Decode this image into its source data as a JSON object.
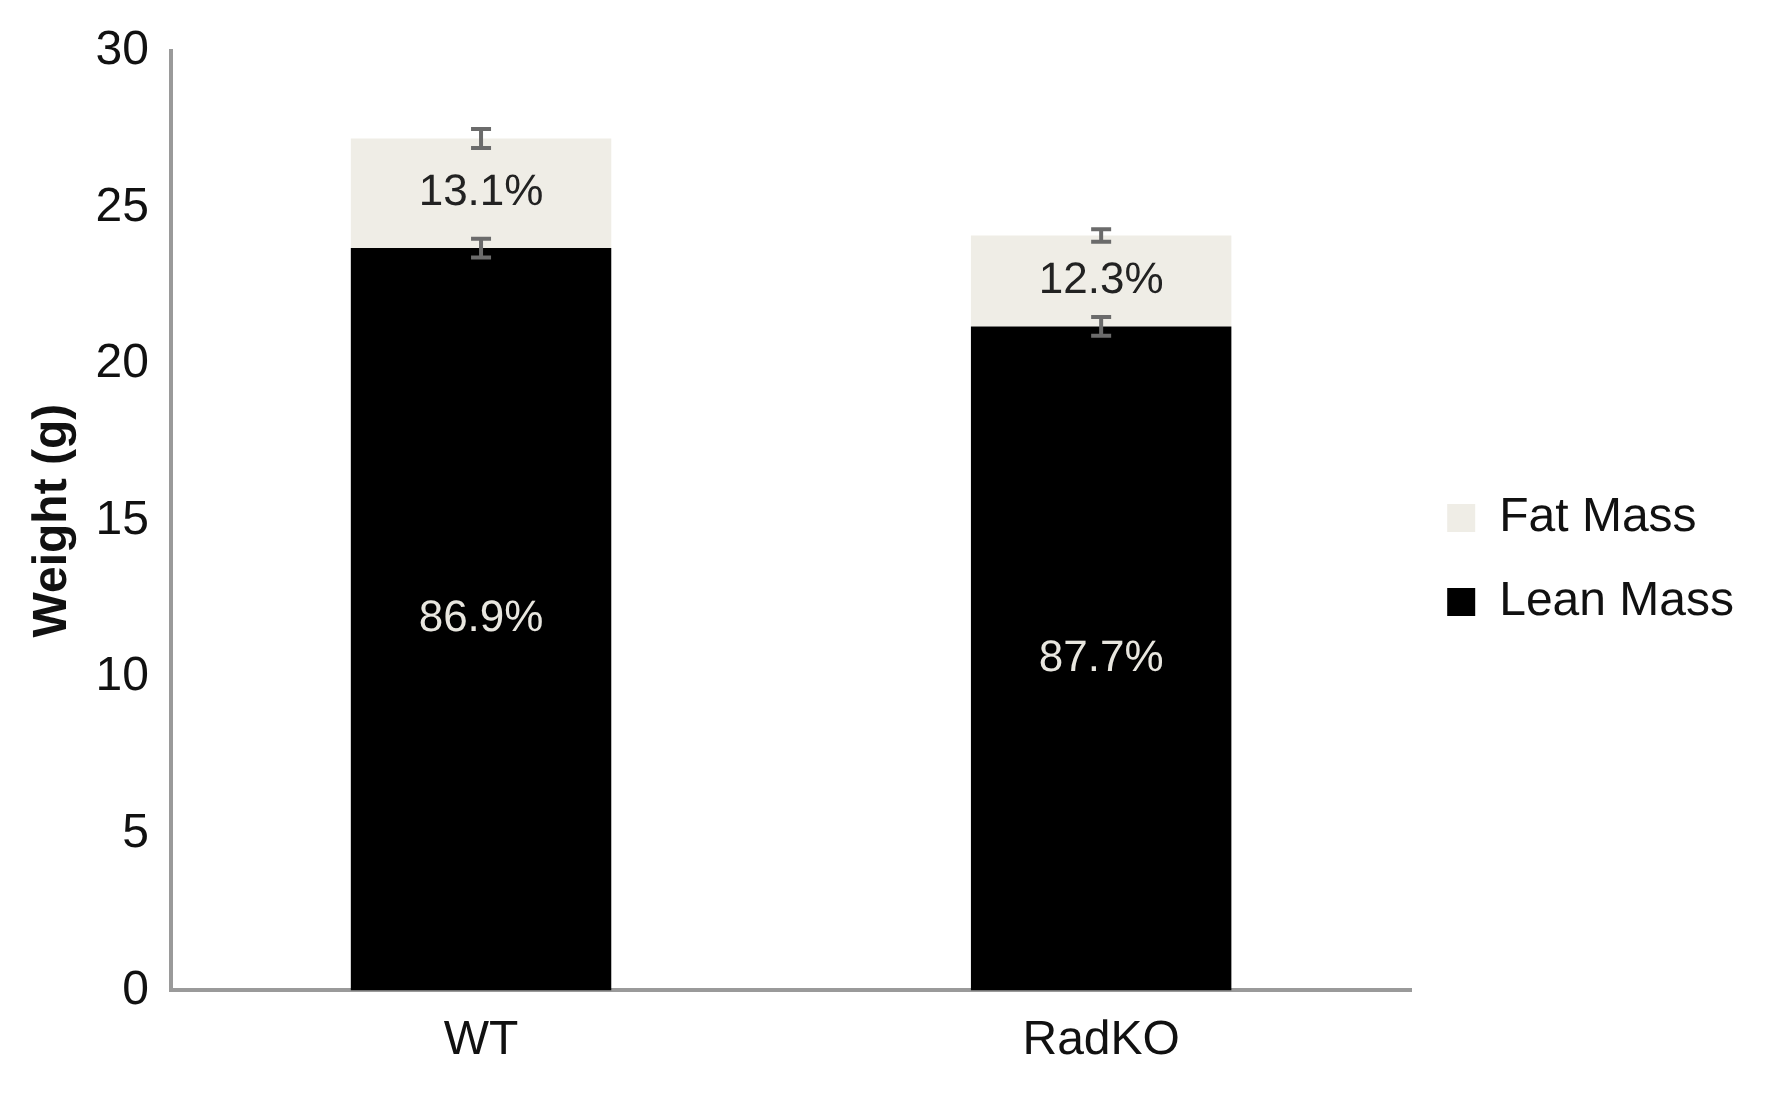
{
  "chart_data": {
    "type": "bar",
    "ylabel": "Weight (g)",
    "categories": [
      "WT",
      "RadKO"
    ],
    "stacked": true,
    "series": [
      {
        "name": "Lean Mass",
        "color": "#000000",
        "values": [
          23.7,
          21.2
        ],
        "errors": [
          0.3,
          0.3
        ]
      },
      {
        "name": "Fat Mass",
        "color": "#efede6",
        "values": [
          3.5,
          2.9
        ],
        "errors": [
          0.3,
          0.2
        ]
      }
    ],
    "annotations": [
      "86.9%",
      "87.7%",
      "13.1%",
      "12.3%"
    ],
    "ylim": [
      0,
      30
    ],
    "yticks": [
      0,
      5,
      10,
      15,
      20,
      25,
      30
    ],
    "grid": false,
    "legend": "right"
  }
}
